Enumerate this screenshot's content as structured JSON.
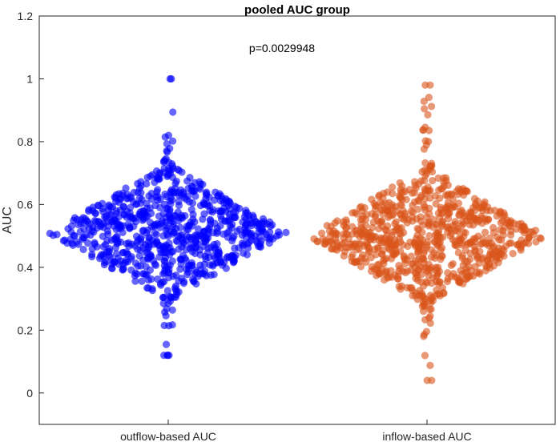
{
  "chart_data": {
    "type": "scatter",
    "subtype": "swarm",
    "title": "pooled AUC group",
    "annotation": "p=0.0029948",
    "xlabel": "",
    "ylabel": "AUC",
    "ylim": [
      -0.1,
      1.2
    ],
    "yticks": [
      0,
      0.2,
      0.4,
      0.6,
      0.8,
      1,
      1.2
    ],
    "ytick_labels": [
      "0",
      "0.2",
      "0.4",
      "0.6",
      "0.8",
      "1",
      "1.2"
    ],
    "categories": [
      "outflow-based AUC",
      "inflow-based AUC"
    ],
    "grid": false,
    "legend": "none",
    "series": [
      {
        "category": "outflow-based AUC",
        "color": "#0000ff",
        "count": 800,
        "min": 0.12,
        "max": 1.0,
        "mode": 0.51,
        "median": 0.51
      },
      {
        "category": "inflow-based AUC",
        "color": "#d95319",
        "count": 800,
        "min": 0.04,
        "max": 0.98,
        "mode": 0.5,
        "median": 0.5
      }
    ]
  }
}
